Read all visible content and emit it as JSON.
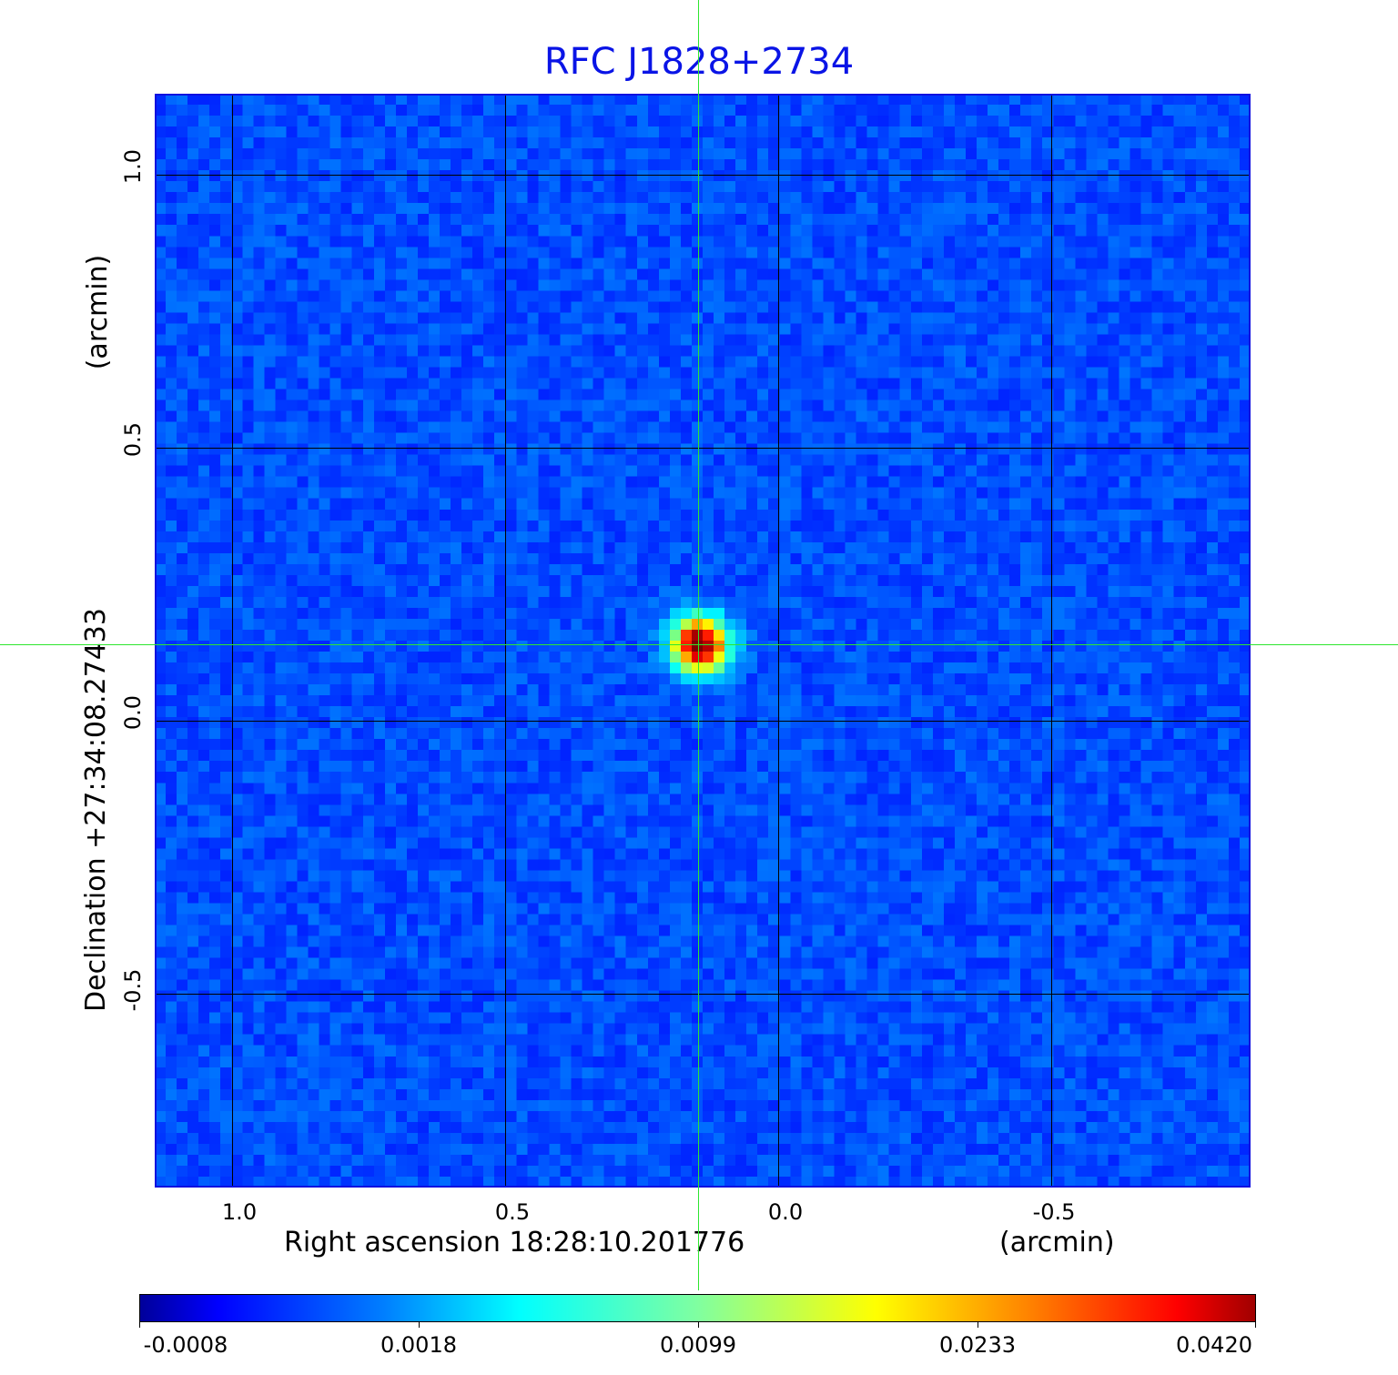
{
  "chart_data": {
    "type": "heatmap",
    "title": "RFC J1828+2734",
    "xlabel": "Right ascension  18:28:10.201776",
    "xunit": "(arcmin)",
    "ylabel": "Declination  +27:34:08.27433",
    "yunit": "(arcmin)",
    "xlim": [
      1.14,
      -0.87
    ],
    "ylim": [
      -0.855,
      1.15
    ],
    "xticks": [
      "1.0",
      "0.5",
      "0.0",
      "-0.5"
    ],
    "yticks": [
      "1.0",
      "0.5",
      "0.0",
      "-0.5"
    ],
    "grid": true,
    "crosshair": {
      "x": 0.147,
      "y": 0.14,
      "color": "#2ee62e"
    },
    "source_peak": {
      "x": 0.14,
      "y": 0.14,
      "value": 0.042
    },
    "colormap": "jet",
    "colorbar": {
      "ticks": [
        "-0.0008",
        "0.0018",
        "0.0099",
        "0.0233",
        "0.0420"
      ],
      "placement": "bottom"
    },
    "title_color": "#0a14e6"
  }
}
